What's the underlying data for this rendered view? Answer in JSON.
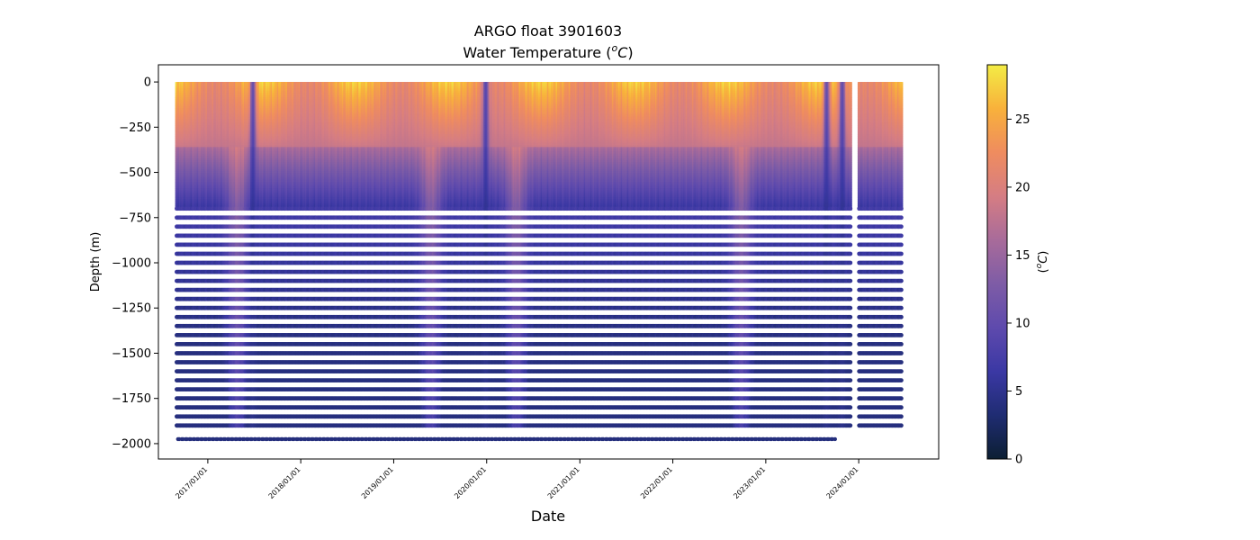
{
  "chart_data": {
    "type": "scatter",
    "title": "ARGO float 3901603",
    "subtitle_prefix": "Water Temperature (",
    "subtitle_unit_sup": "o",
    "subtitle_unit_letter": "C",
    "subtitle_suffix": ")",
    "xlabel": "Date",
    "ylabel": "Depth (m)",
    "x_ticks": [
      "2017/01/01",
      "2018/01/01",
      "2019/01/01",
      "2020/01/01",
      "2021/01/01",
      "2022/01/01",
      "2023/01/01",
      "2024/01/01"
    ],
    "y_ticks": [
      0,
      -250,
      -500,
      -750,
      -1000,
      -1250,
      -1500,
      -1750,
      -2000
    ],
    "y_tick_labels": [
      "0",
      "−250",
      "−500",
      "−750",
      "−1000",
      "−1250",
      "−1500",
      "−1750",
      "−2000"
    ],
    "xlim": [
      "2016-06-21",
      "2024-11-10"
    ],
    "ylim": [
      -2085,
      95
    ],
    "data_x_range": [
      "2016-09-01",
      "2024-06-20"
    ],
    "data_gap": [
      "2023-12-01",
      "2024-01-01"
    ],
    "depth_range": [
      -1975,
      0
    ],
    "colorbar": {
      "label_prefix": "(",
      "label_sup": "o",
      "label_letter": "C",
      "label_suffix": ")",
      "range": [
        0,
        29
      ],
      "ticks": [
        0,
        5,
        10,
        15,
        20,
        25
      ],
      "colormap": [
        "#0c1f33",
        "#1f2c72",
        "#3b38a4",
        "#5e4aad",
        "#7e5ca6",
        "#a86b9a",
        "#d57d83",
        "#ef8c5f",
        "#f8b13b",
        "#f3ec45"
      ]
    },
    "profiles_summary": {
      "surface_temperature_range": [
        12,
        29
      ],
      "deep_temperature_at_minus_2000": 4,
      "cold_column_dates": [
        "2017-07-01",
        "2020-01-01",
        "2023-09-01",
        "2023-11-01"
      ],
      "warm_deep_dates": [
        "2017-05-01",
        "2019-06-01",
        "2020-05-01",
        "2022-10-01"
      ]
    }
  }
}
